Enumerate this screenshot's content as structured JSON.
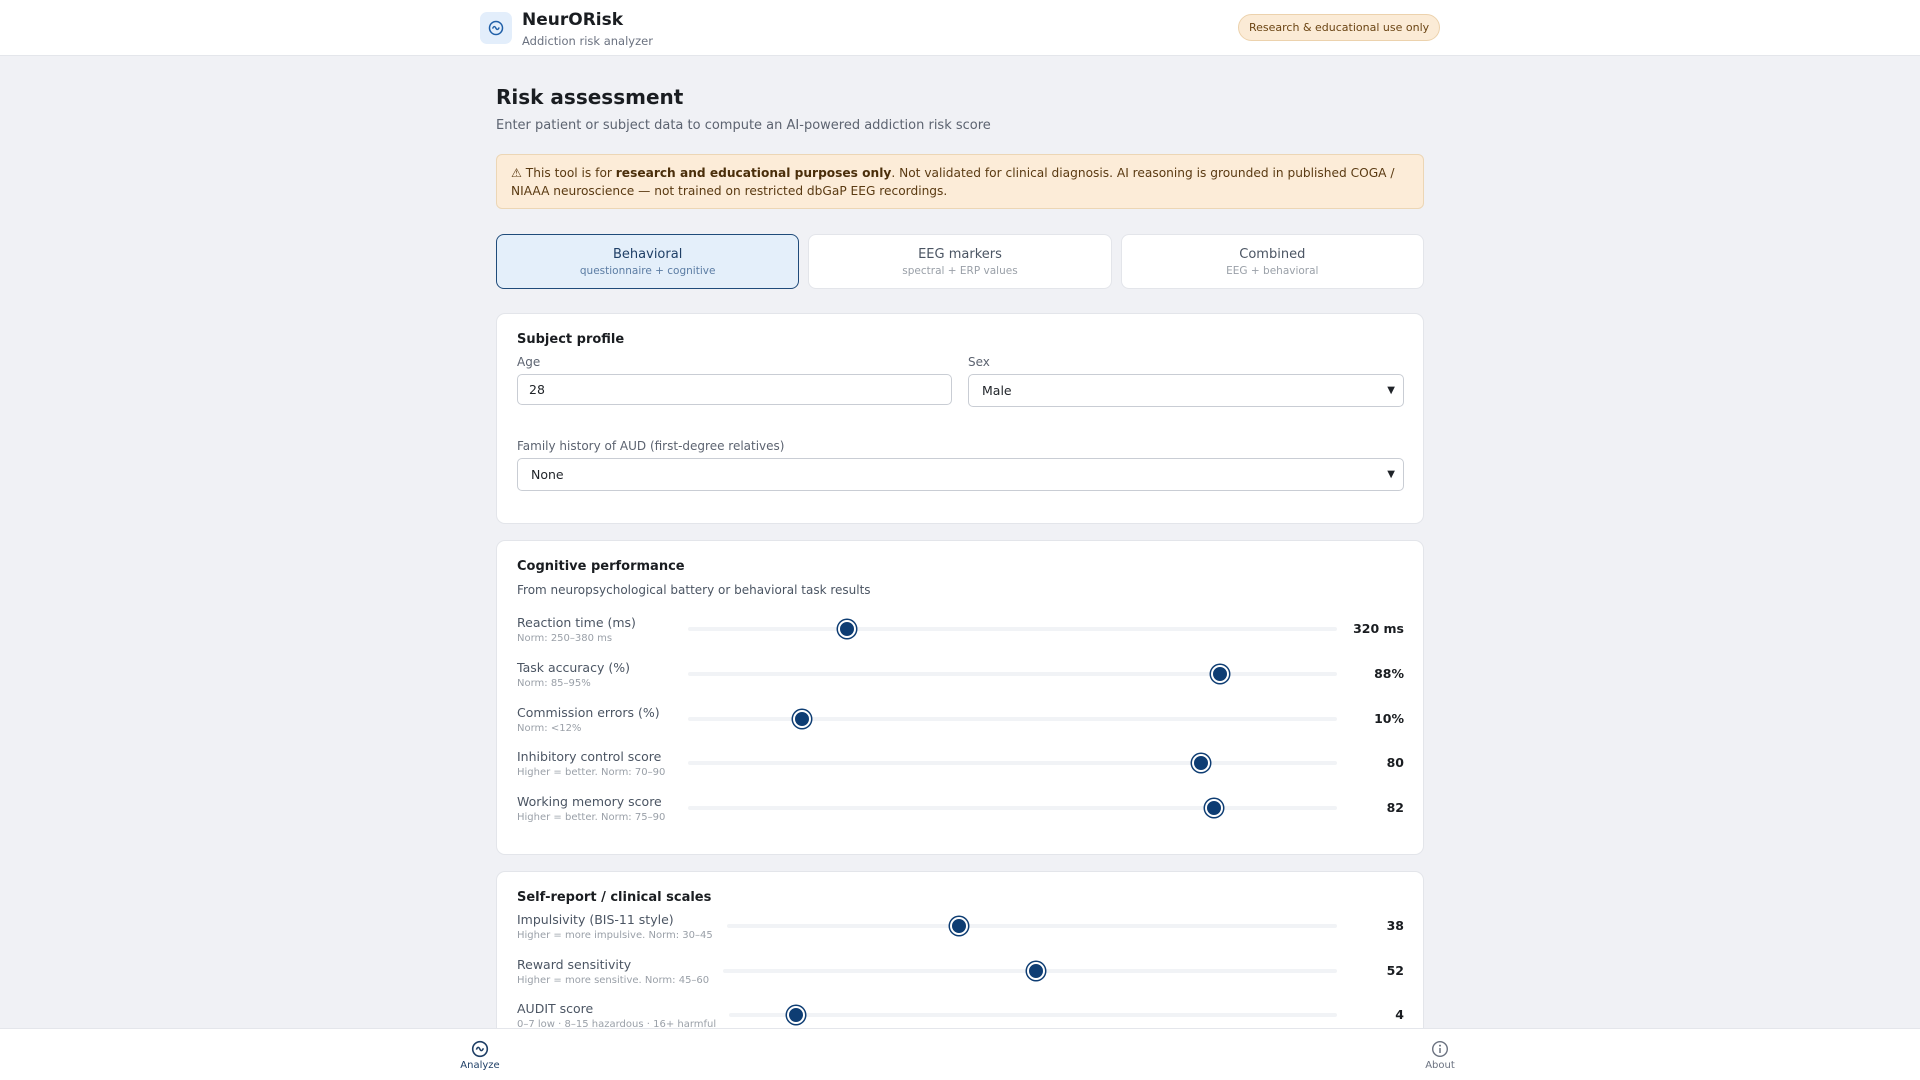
{
  "app": {
    "title": "NeurORisk",
    "subtitle": "Addiction risk analyzer",
    "logo_icon": "waveform-circle-icon",
    "badge": "Research & educational use only"
  },
  "page": {
    "title": "Risk assessment",
    "subtitle": "Enter patient or subject data to compute an AI-powered addiction risk score"
  },
  "warning": {
    "icon": "⚠",
    "prefix": " This tool is for ",
    "bold": "research and educational purposes only",
    "suffix": ". Not validated for clinical diagnosis. AI reasoning is grounded in published COGA / NIAAA neuroscience — not trained on restricted dbGaP EEG recordings."
  },
  "tabs": [
    {
      "label": "Behavioral",
      "sub": "questionnaire + cognitive",
      "active": true
    },
    {
      "label": "EEG markers",
      "sub": "spectral + ERP values",
      "active": false
    },
    {
      "label": "Combined",
      "sub": "EEG + behavioral",
      "active": false
    }
  ],
  "subject_profile": {
    "title": "Subject profile",
    "age_label": "Age",
    "age_value": "28",
    "sex_label": "Sex",
    "sex_value": "Male",
    "family_label": "Family history of AUD (first-degree relatives)",
    "family_value": "None"
  },
  "cognitive": {
    "title": "Cognitive performance",
    "description": "From neuropsychological battery or behavioral task results",
    "sliders": [
      {
        "label": "Reaction time (ms)",
        "hint": "Norm: 250–380 ms",
        "value": "320 ms",
        "pct": 24.5
      },
      {
        "label": "Task accuracy (%)",
        "hint": "Norm: 85–95%",
        "value": "88%",
        "pct": 82
      },
      {
        "label": "Commission errors (%)",
        "hint": "Norm: <12%",
        "value": "10%",
        "pct": 17.5
      },
      {
        "label": "Inhibitory control score",
        "hint": "Higher = better. Norm: 70–90",
        "value": "80",
        "pct": 79
      },
      {
        "label": "Working memory score",
        "hint": "Higher = better. Norm: 75–90",
        "value": "82",
        "pct": 81
      }
    ]
  },
  "self_report": {
    "title": "Self-report / clinical scales",
    "sliders": [
      {
        "label": "Impulsivity (BIS-11 style)",
        "hint": "Higher = more impulsive. Norm: 30–45",
        "value": "38",
        "pct": 38
      },
      {
        "label": "Reward sensitivity",
        "hint": "Higher = more sensitive. Norm: 45–60",
        "value": "52",
        "pct": 51
      },
      {
        "label": "AUDIT score",
        "hint": "0–7 low · 8–15 hazardous · 16+ harmful",
        "value": "4",
        "pct": 11
      }
    ]
  },
  "bottom_nav": [
    {
      "label": "Analyze",
      "icon": "waveform-circle-icon",
      "active": true
    },
    {
      "label": "About",
      "icon": "info-icon",
      "active": false
    }
  ],
  "colors": {
    "accent": "#0e3d73",
    "warning_bg": "#fcecd8",
    "active_tab_bg": "#e4effa"
  }
}
